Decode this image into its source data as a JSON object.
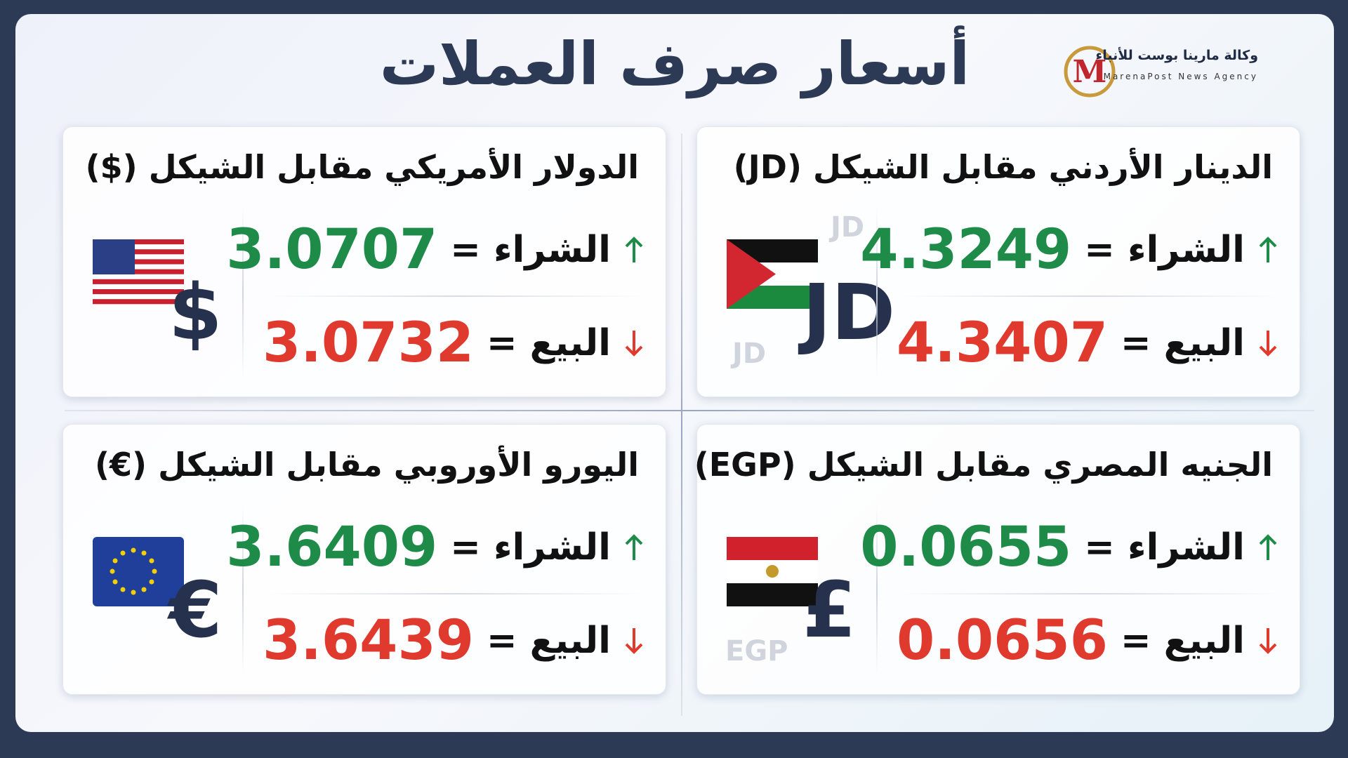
{
  "header": {
    "title": "أسعار صرف العملات",
    "logo": {
      "name": "وكالة مارينا بوست للأنباء",
      "subtitle": "MarenaPost News Agency"
    }
  },
  "cards": [
    {
      "title": "الدينار الأردني مقابل الشيكل (JD)",
      "buy_label": "الشراء =",
      "buy_value": "4.3249",
      "sell_label": "البيع =",
      "sell_value": "4.3407",
      "symbol": "JD",
      "watermarks": [
        "JD",
        "JD"
      ]
    },
    {
      "title": "الدولار الأمريكي مقابل الشيكل ($)",
      "buy_label": "الشراء =",
      "buy_value": "3.0707",
      "sell_label": "البيع =",
      "sell_value": "3.0732",
      "symbol": "$"
    },
    {
      "title": "الجنيه المصري مقابل الشيكل (EGP)",
      "buy_label": "الشراء =",
      "buy_value": "0.0655",
      "sell_label": "البيع =",
      "sell_value": "0.0656",
      "symbol": "£",
      "watermarks": [
        "EGP"
      ]
    },
    {
      "title": "اليورو الأوروبي مقابل الشيكل (€)",
      "buy_label": "الشراء =",
      "buy_value": "3.6409",
      "sell_label": "البيع =",
      "sell_value": "3.6439",
      "symbol": "€"
    }
  ]
}
